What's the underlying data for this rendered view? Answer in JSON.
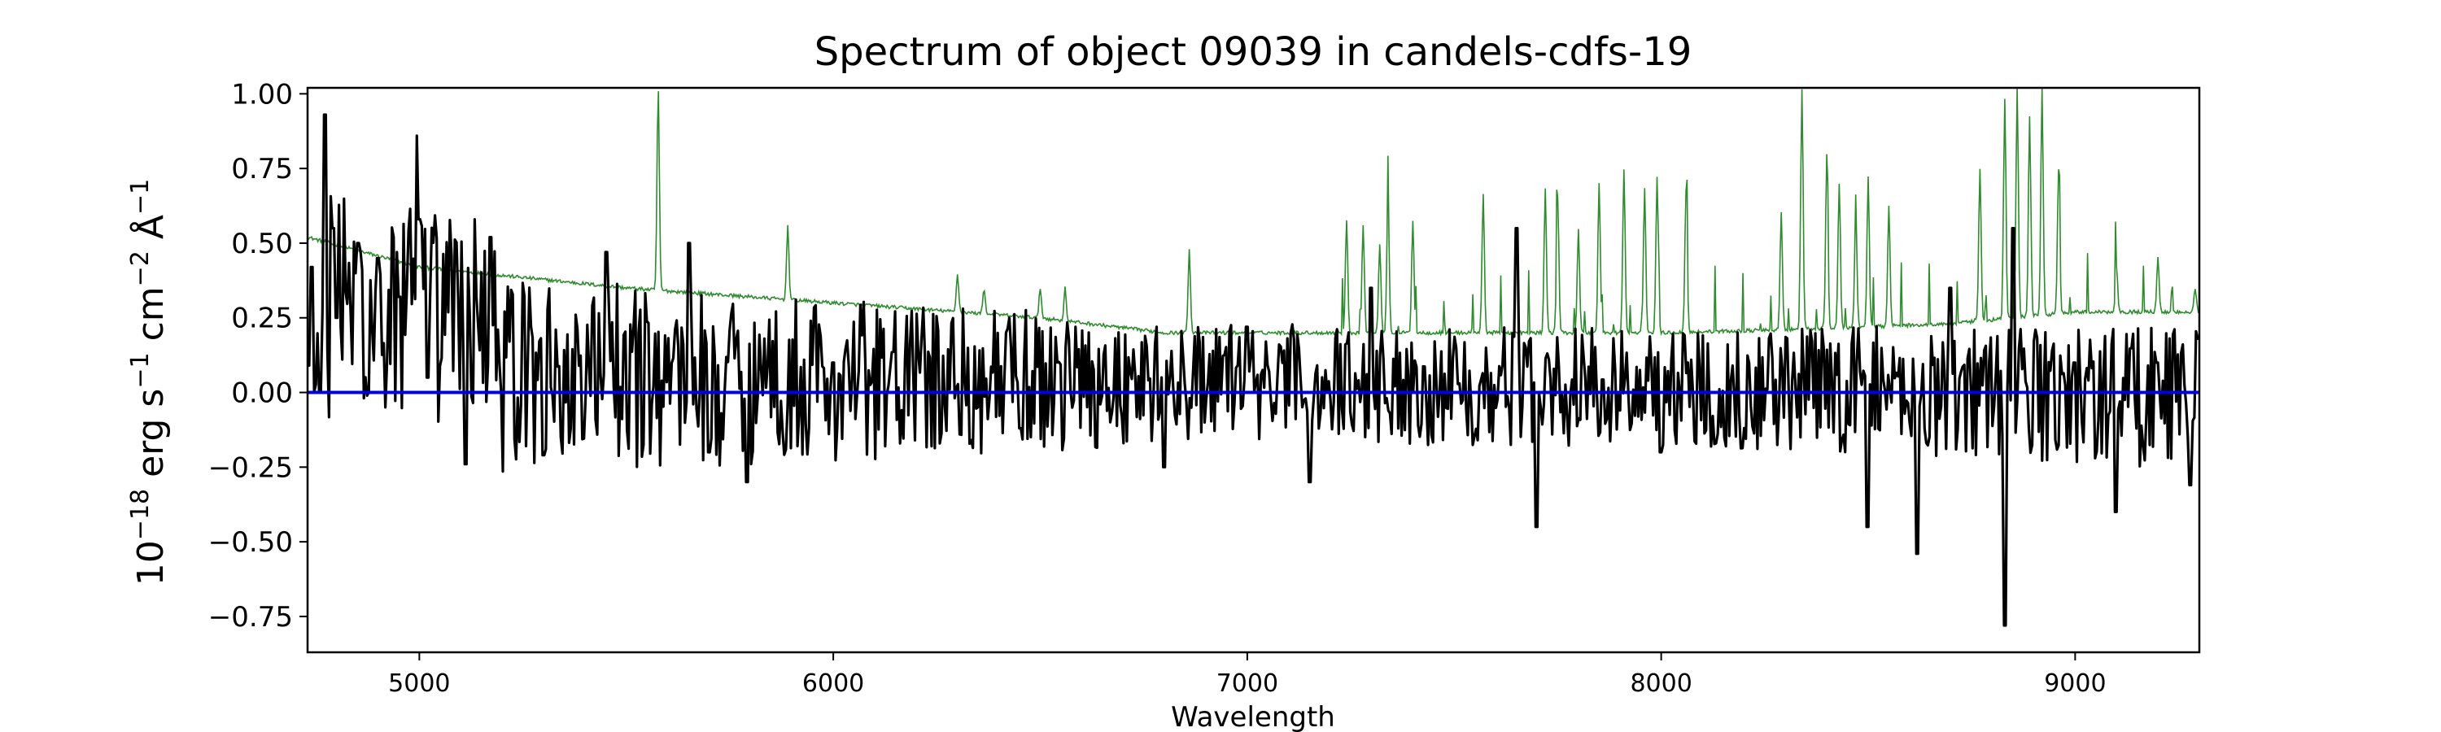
{
  "chart_data": {
    "type": "line",
    "title": "Spectrum of object 09039 in candels-cdfs-19",
    "xlabel": "Wavelength",
    "ylabel": {
      "base": "10",
      "exp1": "−18",
      "erg": " erg s",
      "exp2": "−1",
      "cm": " cm",
      "exp3": "−2",
      "ang": " Å",
      "exp4": "−1"
    },
    "xlim": [
      4730,
      9300
    ],
    "ylim": [
      -0.87,
      1.02
    ],
    "xticks": [
      5000,
      6000,
      7000,
      8000,
      9000
    ],
    "xtick_labels": [
      "5000",
      "6000",
      "7000",
      "8000",
      "9000"
    ],
    "yticks": [
      -0.75,
      -0.5,
      -0.25,
      0.0,
      0.25,
      0.5,
      0.75,
      1.0
    ],
    "ytick_labels": [
      "−0.75",
      "−0.50",
      "−0.25",
      "0.00",
      "0.25",
      "0.50",
      "0.75",
      "1.00"
    ],
    "grid": false,
    "series": [
      {
        "role": "flux",
        "color": "#000000",
        "x_range": [
          4730,
          9300
        ],
        "points": 1144,
        "key_points": [
          [
            4740,
            0.42
          ],
          [
            4760,
            0.0
          ],
          [
            4770,
            0.93
          ],
          [
            4790,
            0.55
          ],
          [
            4800,
            0.25
          ],
          [
            4850,
            0.5
          ],
          [
            4900,
            0.45
          ],
          [
            4950,
            0.32
          ],
          [
            4995,
            0.86
          ],
          [
            5000,
            0.58
          ],
          [
            5020,
            0.05
          ],
          [
            5110,
            -0.24
          ],
          [
            5170,
            0.52
          ],
          [
            5300,
            -0.21
          ],
          [
            5450,
            0.47
          ],
          [
            5650,
            0.5
          ],
          [
            5700,
            -0.2
          ],
          [
            5790,
            -0.3
          ],
          [
            6000,
            0.1
          ],
          [
            6450,
            -0.12
          ],
          [
            6800,
            -0.25
          ],
          [
            7000,
            0.22
          ],
          [
            7150,
            -0.3
          ],
          [
            7300,
            0.35
          ],
          [
            7650,
            0.55
          ],
          [
            7700,
            -0.45
          ],
          [
            8000,
            -0.2
          ],
          [
            8500,
            -0.45
          ],
          [
            8620,
            -0.54
          ],
          [
            8700,
            0.35
          ],
          [
            8830,
            -0.78
          ],
          [
            8850,
            0.55
          ],
          [
            9000,
            0.1
          ],
          [
            9100,
            -0.4
          ],
          [
            9200,
            0.1
          ],
          [
            9280,
            -0.31
          ],
          [
            9300,
            0.18
          ]
        ]
      },
      {
        "role": "error",
        "color": "#2e8b2e",
        "baseline": [
          [
            4730,
            0.52
          ],
          [
            5000,
            0.42
          ],
          [
            5500,
            0.35
          ],
          [
            6000,
            0.3
          ],
          [
            6500,
            0.25
          ],
          [
            6800,
            0.2
          ],
          [
            7200,
            0.2
          ],
          [
            7500,
            0.2
          ],
          [
            8000,
            0.2
          ],
          [
            8300,
            0.21
          ],
          [
            8700,
            0.23
          ],
          [
            9000,
            0.27
          ],
          [
            9300,
            0.27
          ]
        ],
        "peaks": [
          [
            5577,
            1.02
          ],
          [
            5890,
            0.56
          ],
          [
            6300,
            0.4
          ],
          [
            6364,
            0.35
          ],
          [
            6500,
            0.35
          ],
          [
            6560,
            0.35
          ],
          [
            6860,
            0.48
          ],
          [
            7240,
            0.58
          ],
          [
            7280,
            0.56
          ],
          [
            7320,
            0.5
          ],
          [
            7340,
            0.66
          ],
          [
            7400,
            0.58
          ],
          [
            7570,
            0.67
          ],
          [
            7720,
            0.68
          ],
          [
            7750,
            0.66
          ],
          [
            7800,
            0.55
          ],
          [
            7850,
            0.7
          ],
          [
            7910,
            0.75
          ],
          [
            7960,
            0.68
          ],
          [
            7990,
            0.72
          ],
          [
            8060,
            0.68
          ],
          [
            8290,
            0.6
          ],
          [
            8340,
            1.02
          ],
          [
            8400,
            0.8
          ],
          [
            8430,
            0.7
          ],
          [
            8470,
            0.6
          ],
          [
            8500,
            0.72
          ],
          [
            8550,
            0.63
          ],
          [
            8770,
            0.75
          ],
          [
            8830,
            0.98
          ],
          [
            8860,
            1.02
          ],
          [
            8890,
            0.92
          ],
          [
            8920,
            1.02
          ],
          [
            8960,
            0.75
          ],
          [
            9100,
            0.42
          ],
          [
            9200,
            0.45
          ],
          [
            9290,
            0.35
          ]
        ]
      },
      {
        "role": "zero",
        "color": "#0000dd",
        "y": 0.0
      }
    ]
  }
}
